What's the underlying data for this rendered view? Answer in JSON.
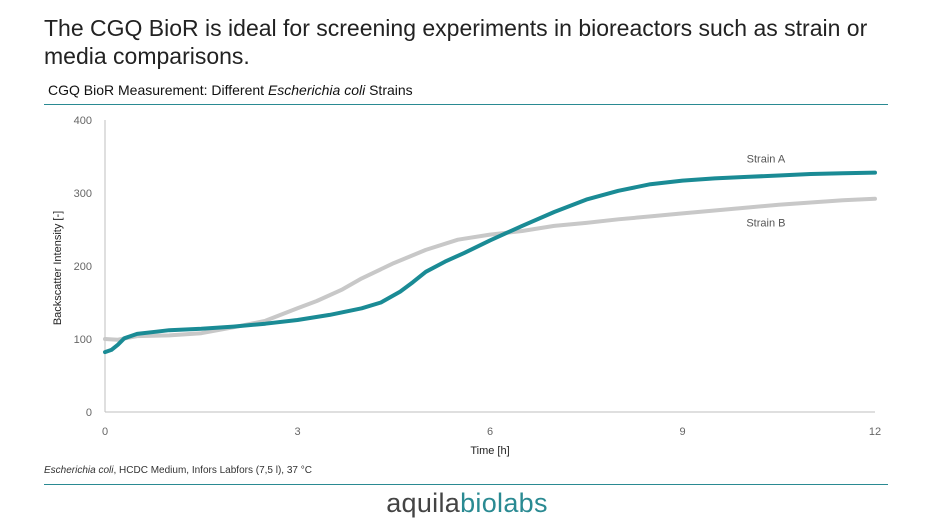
{
  "headline": "The CGQ BioR is ideal for screening experiments in bioreactors such as strain or media comparisons.",
  "chart_title": {
    "prefix": "CGQ BioR Measurement: Different ",
    "italic": "Escherichia coli",
    "suffix": " Strains"
  },
  "footnote": {
    "italic": "Escherichia coli",
    "rest": ", HCDC Medium, Infors Labfors (7,5 l), 37 °C"
  },
  "logo": {
    "part1": "aquila",
    "part2": "biolabs"
  },
  "colors": {
    "accent": "#1e8a94",
    "strain_a": "#1a8b95",
    "strain_b": "#c8c8c8"
  },
  "chart_data": {
    "type": "line",
    "xlabel": "Time [h]",
    "ylabel": "Backscatter Intensity [-]",
    "xlim": [
      0,
      12
    ],
    "ylim": [
      0,
      400
    ],
    "xticks": [
      0,
      3,
      6,
      9,
      12
    ],
    "yticks": [
      0,
      100,
      200,
      300,
      400
    ],
    "grid": false,
    "series": [
      {
        "name": "Strain A",
        "color": "#1a8b95",
        "points": [
          [
            0,
            82
          ],
          [
            0.1,
            85
          ],
          [
            0.2,
            92
          ],
          [
            0.3,
            101
          ],
          [
            0.5,
            107
          ],
          [
            0.8,
            110
          ],
          [
            1,
            112
          ],
          [
            1.5,
            114
          ],
          [
            2,
            117
          ],
          [
            2.5,
            121
          ],
          [
            3,
            126
          ],
          [
            3.5,
            133
          ],
          [
            4,
            142
          ],
          [
            4.3,
            150
          ],
          [
            4.6,
            165
          ],
          [
            4.8,
            178
          ],
          [
            5,
            192
          ],
          [
            5.3,
            206
          ],
          [
            5.6,
            218
          ],
          [
            6,
            235
          ],
          [
            6.5,
            255
          ],
          [
            7,
            274
          ],
          [
            7.5,
            291
          ],
          [
            8,
            303
          ],
          [
            8.5,
            312
          ],
          [
            9,
            317
          ],
          [
            9.5,
            320
          ],
          [
            10,
            322
          ],
          [
            10.5,
            324
          ],
          [
            11,
            326
          ],
          [
            11.5,
            327
          ],
          [
            12,
            328
          ]
        ]
      },
      {
        "name": "Strain B",
        "color": "#c8c8c8",
        "points": [
          [
            0,
            100
          ],
          [
            0.2,
            99
          ],
          [
            0.5,
            104
          ],
          [
            1,
            105
          ],
          [
            1.5,
            108
          ],
          [
            2,
            116
          ],
          [
            2.5,
            125
          ],
          [
            3,
            142
          ],
          [
            3.3,
            152
          ],
          [
            3.7,
            168
          ],
          [
            4,
            183
          ],
          [
            4.5,
            204
          ],
          [
            5,
            222
          ],
          [
            5.5,
            236
          ],
          [
            6,
            243
          ],
          [
            6.5,
            248
          ],
          [
            7,
            255
          ],
          [
            7.5,
            259
          ],
          [
            8,
            264
          ],
          [
            8.5,
            268
          ],
          [
            9,
            272
          ],
          [
            9.5,
            276
          ],
          [
            10,
            280
          ],
          [
            10.5,
            284
          ],
          [
            11,
            287
          ],
          [
            11.5,
            290
          ],
          [
            12,
            292
          ]
        ]
      }
    ]
  }
}
